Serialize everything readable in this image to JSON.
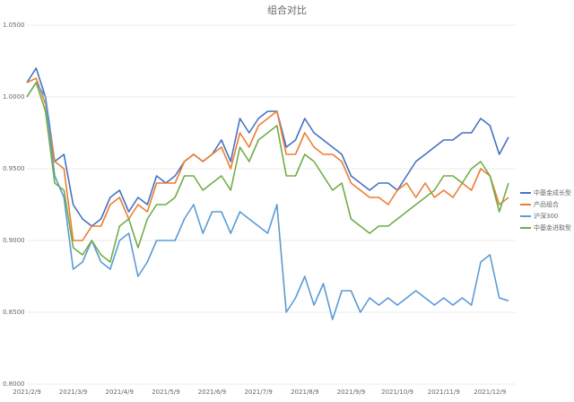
{
  "chart_data": {
    "type": "line",
    "title": "组合对比",
    "categories": [
      "2021/2/9",
      null,
      null,
      null,
      null,
      "2021/3/9",
      null,
      null,
      null,
      null,
      "2021/4/9",
      null,
      null,
      null,
      null,
      "2021/5/9",
      null,
      null,
      null,
      null,
      "2021/6/9",
      null,
      null,
      null,
      null,
      "2021/7/9",
      null,
      null,
      null,
      null,
      "2021/8/9",
      null,
      null,
      null,
      null,
      "2021/9/9",
      null,
      null,
      null,
      null,
      "2021/10/9",
      null,
      null,
      null,
      null,
      "2021/11/9",
      null,
      null,
      null,
      null,
      "2021/12/9",
      null,
      null
    ],
    "series": [
      {
        "name": "中基金成长型",
        "color": "#4472c4",
        "values": [
          1.01,
          1.02,
          1.0,
          0.955,
          0.96,
          0.925,
          0.915,
          0.91,
          0.915,
          0.93,
          0.935,
          0.92,
          0.93,
          0.925,
          0.945,
          0.94,
          0.945,
          0.955,
          0.96,
          0.955,
          0.96,
          0.97,
          0.955,
          0.985,
          0.975,
          0.985,
          0.99,
          0.99,
          0.965,
          0.97,
          0.985,
          0.975,
          0.97,
          0.965,
          0.96,
          0.945,
          0.94,
          0.935,
          0.94,
          0.94,
          0.935,
          0.945,
          0.955,
          0.96,
          0.965,
          0.97,
          0.97,
          0.975,
          0.975,
          0.985,
          0.98,
          0.96,
          0.972
        ]
      },
      {
        "name": "产品组合",
        "color": "#ed7d31",
        "values": [
          1.01,
          1.013,
          0.995,
          0.955,
          0.95,
          0.9,
          0.9,
          0.91,
          0.91,
          0.925,
          0.93,
          0.915,
          0.925,
          0.92,
          0.94,
          0.94,
          0.94,
          0.955,
          0.96,
          0.955,
          0.96,
          0.965,
          0.95,
          0.975,
          0.965,
          0.98,
          0.985,
          0.99,
          0.96,
          0.96,
          0.975,
          0.965,
          0.96,
          0.96,
          0.955,
          0.94,
          0.935,
          0.93,
          0.93,
          0.925,
          0.935,
          0.94,
          0.93,
          0.94,
          0.93,
          0.935,
          0.93,
          0.94,
          0.935,
          0.95,
          0.945,
          0.925,
          0.93
        ]
      },
      {
        "name": "沪深300",
        "color": "#5b9bd5",
        "values": [
          1.0,
          1.01,
          1.0,
          0.945,
          0.93,
          0.88,
          0.885,
          0.9,
          0.885,
          0.88,
          0.9,
          0.905,
          0.875,
          0.885,
          0.9,
          0.9,
          0.9,
          0.915,
          0.925,
          0.905,
          0.92,
          0.92,
          0.905,
          0.92,
          0.915,
          0.91,
          0.905,
          0.925,
          0.85,
          0.86,
          0.875,
          0.855,
          0.87,
          0.845,
          0.865,
          0.865,
          0.85,
          0.86,
          0.855,
          0.86,
          0.855,
          0.86,
          0.865,
          0.86,
          0.855,
          0.86,
          0.855,
          0.86,
          0.855,
          0.885,
          0.89,
          0.86,
          0.858
        ]
      },
      {
        "name": "中基金进取型",
        "color": "#70ad47",
        "values": [
          1.0,
          1.01,
          0.99,
          0.94,
          0.935,
          0.895,
          0.89,
          0.9,
          0.89,
          0.885,
          0.91,
          0.915,
          0.895,
          0.915,
          0.925,
          0.925,
          0.93,
          0.945,
          0.945,
          0.935,
          0.94,
          0.945,
          0.935,
          0.965,
          0.955,
          0.97,
          0.975,
          0.98,
          0.945,
          0.945,
          0.96,
          0.955,
          0.945,
          0.935,
          0.94,
          0.915,
          0.91,
          0.905,
          0.91,
          0.91,
          0.915,
          0.92,
          0.925,
          0.93,
          0.935,
          0.945,
          0.945,
          0.94,
          0.95,
          0.955,
          0.945,
          0.92,
          0.94
        ]
      }
    ],
    "ylim": [
      0.8,
      1.05
    ],
    "yticks": [
      {
        "value": 0.8,
        "label": "0.8000"
      },
      {
        "value": 0.85,
        "label": "0.8500"
      },
      {
        "value": 0.9,
        "label": "0.9000"
      },
      {
        "value": 0.95,
        "label": "0.9500"
      },
      {
        "value": 1.0,
        "label": "1.0000"
      },
      {
        "value": 1.05,
        "label": "1.0500"
      }
    ],
    "grid": true
  }
}
